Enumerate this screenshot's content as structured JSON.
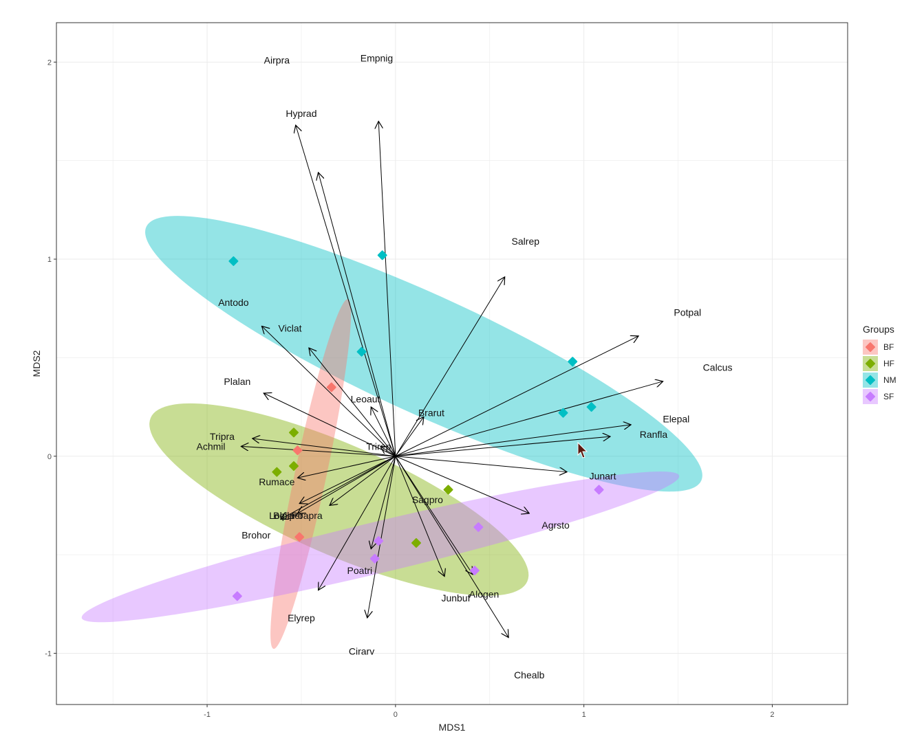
{
  "chart_data": {
    "type": "scatter",
    "xlabel": "MDS1",
    "ylabel": "MDS2",
    "xlim": [
      -1.8,
      2.4
    ],
    "ylim": [
      -1.26,
      2.2
    ],
    "x_ticks": [
      -1,
      0,
      1,
      2
    ],
    "y_ticks": [
      -1,
      0,
      1,
      2
    ],
    "x_tick_labels": [
      "-1",
      "0",
      "1",
      "2"
    ],
    "y_tick_labels": [
      "-1",
      "0",
      "1",
      "2"
    ],
    "grid": true,
    "legend": {
      "title": "Groups",
      "placement": "right",
      "entries": [
        {
          "name": "BF",
          "color": "#F8766D"
        },
        {
          "name": "HF",
          "color": "#7CAE00"
        },
        {
          "name": "NM",
          "color": "#00BFC4"
        },
        {
          "name": "SF",
          "color": "#C77CFF"
        }
      ]
    },
    "series": [
      {
        "name": "BF",
        "color": "#F8766D",
        "points": [
          [
            -0.34,
            0.35
          ],
          [
            -0.52,
            0.03
          ],
          [
            -0.51,
            -0.41
          ]
        ]
      },
      {
        "name": "HF",
        "color": "#7CAE00",
        "points": [
          [
            -0.54,
            0.12
          ],
          [
            -0.54,
            -0.05
          ],
          [
            -0.63,
            -0.08
          ],
          [
            0.28,
            -0.17
          ],
          [
            0.11,
            -0.44
          ]
        ]
      },
      {
        "name": "NM",
        "color": "#00BFC4",
        "points": [
          [
            -0.86,
            0.99
          ],
          [
            -0.07,
            1.02
          ],
          [
            -0.18,
            0.53
          ],
          [
            0.94,
            0.48
          ],
          [
            0.89,
            0.22
          ],
          [
            1.04,
            0.25
          ]
        ]
      },
      {
        "name": "SF",
        "color": "#C77CFF",
        "points": [
          [
            -0.84,
            -0.71
          ],
          [
            1.08,
            -0.17
          ],
          [
            0.44,
            -0.36
          ],
          [
            0.42,
            -0.58
          ],
          [
            -0.09,
            -0.43
          ],
          [
            -0.11,
            -0.52
          ]
        ]
      }
    ],
    "ellipses": [
      {
        "group": "NM",
        "color": "#00BFC4",
        "cx": 0.15,
        "cy": 0.52,
        "rx": 1.62,
        "ry": 0.3,
        "angle_deg": -24.6
      },
      {
        "group": "HF",
        "color": "#7CAE00",
        "cx": -0.3,
        "cy": -0.22,
        "rx": 1.09,
        "ry": 0.28,
        "angle_deg": -23.5
      },
      {
        "group": "BF",
        "color": "#F8766D",
        "cx": -0.45,
        "cy": -0.09,
        "rx": 0.95,
        "ry": 0.08,
        "angle_deg": 78.0
      },
      {
        "group": "SF",
        "color": "#C77CFF",
        "cx": -0.08,
        "cy": -0.46,
        "rx": 1.63,
        "ry": 0.13,
        "angle_deg": 13.4
      }
    ],
    "arrows": [
      {
        "x": -0.53,
        "y": 1.68
      },
      {
        "x": -0.41,
        "y": 1.44
      },
      {
        "x": -0.09,
        "y": 1.7
      },
      {
        "x": 0.58,
        "y": 0.91
      },
      {
        "x": 1.29,
        "y": 0.61
      },
      {
        "x": 1.42,
        "y": 0.38
      },
      {
        "x": 1.25,
        "y": 0.16
      },
      {
        "x": 1.14,
        "y": 0.1
      },
      {
        "x": 0.91,
        "y": -0.08
      },
      {
        "x": 0.71,
        "y": -0.29
      },
      {
        "x": 0.6,
        "y": -0.92
      },
      {
        "x": 0.41,
        "y": -0.6
      },
      {
        "x": 0.26,
        "y": -0.61
      },
      {
        "x": -0.15,
        "y": -0.82
      },
      {
        "x": -0.41,
        "y": -0.68
      },
      {
        "x": -0.13,
        "y": -0.47
      },
      {
        "x": -0.51,
        "y": -0.24
      },
      {
        "x": -0.35,
        "y": -0.25
      },
      {
        "x": -0.61,
        "y": -0.32
      },
      {
        "x": -0.52,
        "y": -0.29
      },
      {
        "x": -0.52,
        "y": -0.11
      },
      {
        "x": -0.82,
        "y": 0.05
      },
      {
        "x": -0.76,
        "y": 0.09
      },
      {
        "x": -0.7,
        "y": 0.32
      },
      {
        "x": -0.46,
        "y": 0.55
      },
      {
        "x": -0.71,
        "y": 0.66
      },
      {
        "x": -0.13,
        "y": 0.25
      },
      {
        "x": 0.15,
        "y": 0.2
      },
      {
        "x": -0.08,
        "y": 0.05
      }
    ],
    "species": [
      {
        "name": "Airpra",
        "x": -0.63,
        "y": 2.01
      },
      {
        "name": "Empnig",
        "x": -0.1,
        "y": 2.02
      },
      {
        "name": "Hyprad",
        "x": -0.5,
        "y": 1.74
      },
      {
        "name": "Salrep",
        "x": 0.69,
        "y": 1.09
      },
      {
        "name": "Antodo",
        "x": -0.86,
        "y": 0.78
      },
      {
        "name": "Potpal",
        "x": 1.55,
        "y": 0.73
      },
      {
        "name": "Viclat",
        "x": -0.56,
        "y": 0.65
      },
      {
        "name": "Calcus",
        "x": 1.71,
        "y": 0.45
      },
      {
        "name": "Plalan",
        "x": -0.84,
        "y": 0.38
      },
      {
        "name": "Leoaut",
        "x": -0.16,
        "y": 0.29
      },
      {
        "name": "Brarut",
        "x": 0.19,
        "y": 0.22
      },
      {
        "name": "Elepal",
        "x": 1.49,
        "y": 0.19
      },
      {
        "name": "Tripra",
        "x": -0.92,
        "y": 0.1
      },
      {
        "name": "Ranfla",
        "x": 1.37,
        "y": 0.11
      },
      {
        "name": "Achmil",
        "x": -0.98,
        "y": 0.05
      },
      {
        "name": "Trirep",
        "x": -0.09,
        "y": 0.05
      },
      {
        "name": "Junart",
        "x": 1.1,
        "y": -0.1
      },
      {
        "name": "Rumace",
        "x": -0.63,
        "y": -0.13
      },
      {
        "name": "Sagpro",
        "x": 0.17,
        "y": -0.22
      },
      {
        "name": "Lolper",
        "x": -0.6,
        "y": -0.3
      },
      {
        "name": "Bellper",
        "x": -0.57,
        "y": -0.3
      },
      {
        "name": "Poapra",
        "x": -0.47,
        "y": -0.3
      },
      {
        "name": "Agrsto",
        "x": 0.85,
        "y": -0.35
      },
      {
        "name": "Brohor",
        "x": -0.74,
        "y": -0.4
      },
      {
        "name": "Poatri",
        "x": -0.19,
        "y": -0.58
      },
      {
        "name": "Alogen",
        "x": 0.47,
        "y": -0.7
      },
      {
        "name": "Junbuf",
        "x": 0.32,
        "y": -0.72
      },
      {
        "name": "Elyrep",
        "x": -0.5,
        "y": -0.82
      },
      {
        "name": "Cirarv",
        "x": -0.18,
        "y": -0.99
      },
      {
        "name": "Chealb",
        "x": 0.71,
        "y": -1.11
      }
    ]
  }
}
